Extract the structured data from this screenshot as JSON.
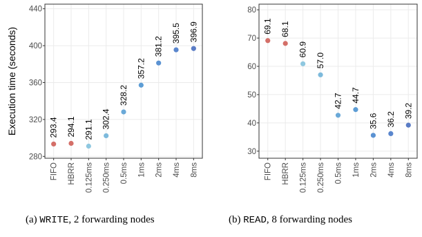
{
  "chart_data": [
    {
      "type": "scatter",
      "ylabel": "Execution time (seconds)",
      "ylim": [
        278,
        445
      ],
      "yticks": [
        280,
        320,
        360,
        400,
        440
      ],
      "categories": [
        "FIFO",
        "HBRR",
        "0.125ms",
        "0.250ms",
        "0.5ms",
        "1ms",
        "2ms",
        "4ms",
        "8ms"
      ],
      "values": [
        293.4,
        294.1,
        291.1,
        302.4,
        328.2,
        357.2,
        381.2,
        395.5,
        396.9
      ],
      "labels": [
        "293.4",
        "294.1",
        "291.1",
        "302.4",
        "328.2",
        "357.2",
        "381.2",
        "395.5",
        "396.9"
      ],
      "point_colors": [
        "#d46f68",
        "#d46f68",
        "#8fc8e0",
        "#7dbadc",
        "#6aa9d8",
        "#5d9dd5",
        "#5b92d2",
        "#5a86cd",
        "#5a7cc5"
      ]
    },
    {
      "type": "scatter",
      "ylabel": "",
      "ylim": [
        27.5,
        82
      ],
      "yticks": [
        30,
        40,
        50,
        60,
        70,
        80
      ],
      "categories": [
        "FIFO",
        "HBRR",
        "0.125ms",
        "0.250ms",
        "0.5ms",
        "1ms",
        "2ms",
        "4ms",
        "8ms"
      ],
      "values": [
        69.1,
        68.1,
        60.9,
        57.0,
        42.7,
        44.7,
        35.6,
        36.2,
        39.2
      ],
      "labels": [
        "69.1",
        "68.1",
        "60.9",
        "57.0",
        "42.7",
        "44.7",
        "35.6",
        "36.2",
        "39.2"
      ],
      "point_colors": [
        "#d46f68",
        "#d46f68",
        "#8fc8e0",
        "#7dbadc",
        "#6aa9d8",
        "#5d9dd5",
        "#5b92d2",
        "#5a86cd",
        "#5a7cc5"
      ]
    }
  ],
  "captions": [
    {
      "prefix": "(a) ",
      "mono": "WRITE",
      "suffix": ", 2 forwarding nodes"
    },
    {
      "prefix": "(b) ",
      "mono": "READ",
      "suffix": ", 8 forwarding nodes"
    }
  ]
}
